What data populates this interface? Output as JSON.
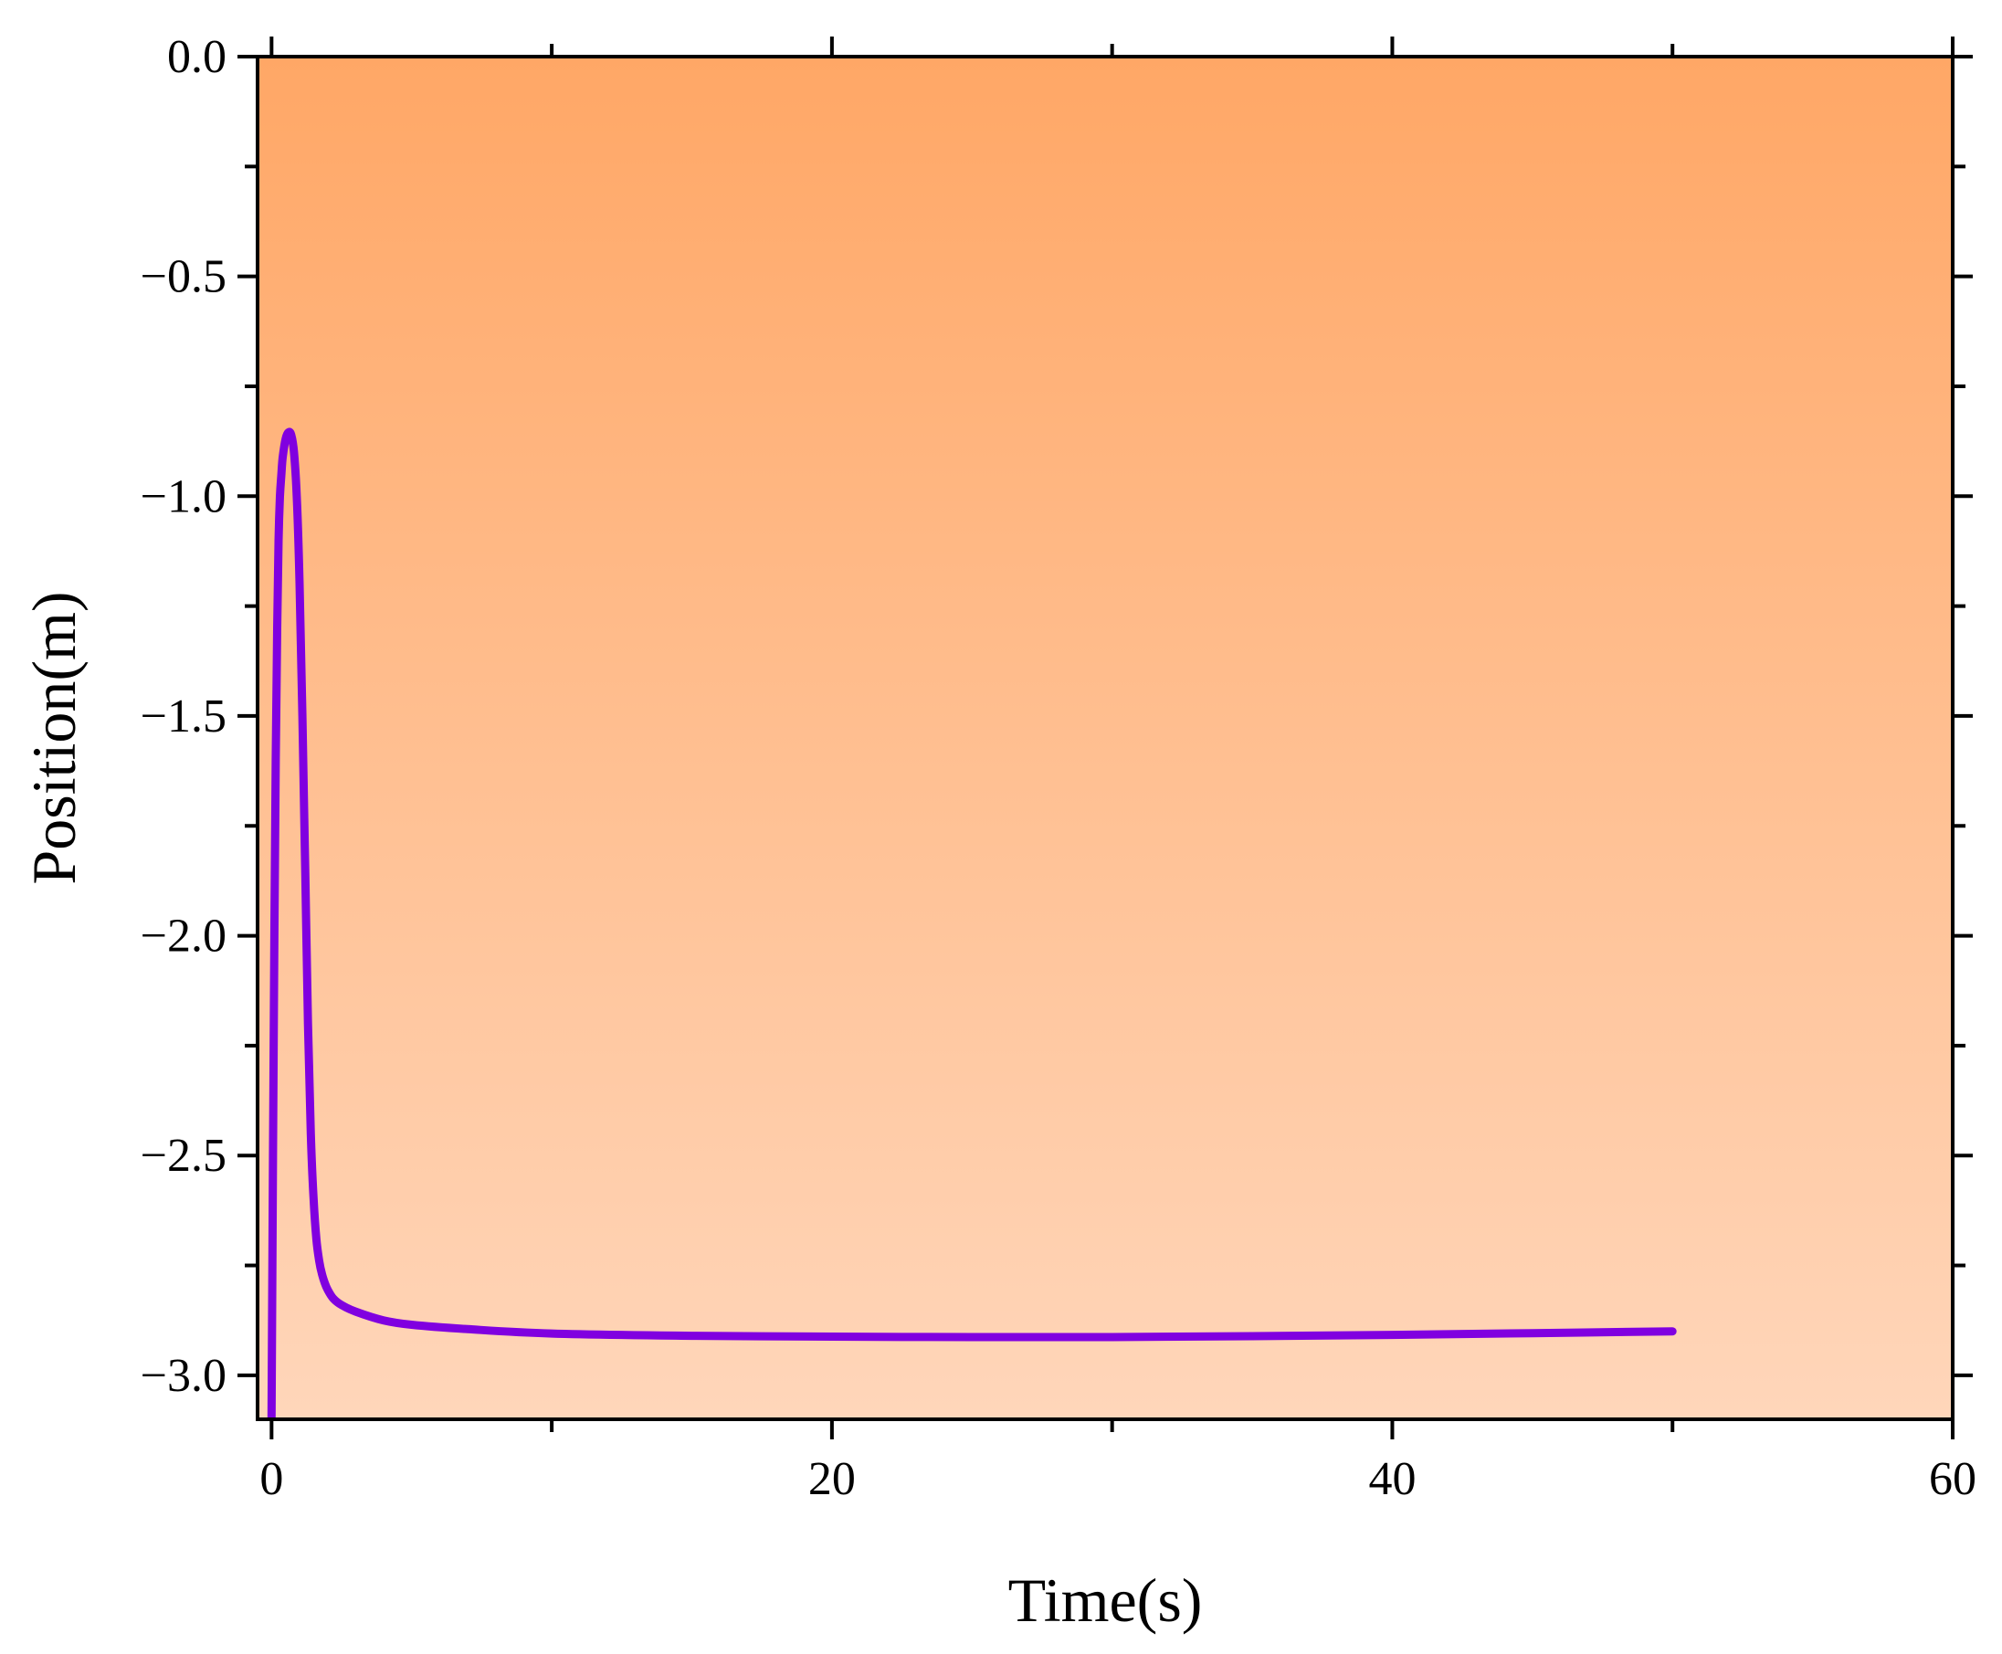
{
  "chart_data": {
    "type": "line",
    "title": "",
    "xlabel": "Time(s)",
    "ylabel": "Position(m)",
    "xlim": [
      -0.5,
      60
    ],
    "ylim": [
      -3.1,
      0.0
    ],
    "x_ticks": [
      {
        "value": 0,
        "label": "0"
      },
      {
        "value": 20,
        "label": "20"
      },
      {
        "value": 40,
        "label": "40"
      },
      {
        "value": 60,
        "label": "60"
      }
    ],
    "x_minor_ticks": [
      10,
      30,
      50
    ],
    "y_ticks": [
      {
        "value": 0.0,
        "label": "0.0"
      },
      {
        "value": -0.5,
        "label": "−0.5"
      },
      {
        "value": -1.0,
        "label": "−1.0"
      },
      {
        "value": -1.5,
        "label": "−1.5"
      },
      {
        "value": -2.0,
        "label": "−2.0"
      },
      {
        "value": -2.5,
        "label": "−2.5"
      },
      {
        "value": -3.0,
        "label": "−3.0"
      }
    ],
    "y_minor_ticks": [
      -0.25,
      -0.75,
      -1.25,
      -1.75,
      -2.25,
      -2.75
    ],
    "grid": false,
    "background_gradient": {
      "top": "#FFA766",
      "bottom": "#FFD6BA"
    },
    "series": [
      {
        "color": "#8000E0",
        "x": [
          0.0,
          0.05,
          0.1,
          0.15,
          0.2,
          0.25,
          0.3,
          0.35,
          0.4,
          0.5,
          0.6,
          0.7,
          0.8,
          0.9,
          1.0,
          1.1,
          1.2,
          1.3,
          1.4,
          1.5,
          1.6,
          1.7,
          1.8,
          1.9,
          2.0,
          2.2,
          2.5,
          3,
          4,
          5,
          7,
          10,
          15,
          20,
          25,
          30,
          35,
          40,
          45,
          50
        ],
        "y": [
          -3.1,
          -2.5,
          -2.0,
          -1.6,
          -1.3,
          -1.1,
          -1.0,
          -0.95,
          -0.91,
          -0.87,
          -0.855,
          -0.86,
          -0.9,
          -1.0,
          -1.2,
          -1.5,
          -1.85,
          -2.2,
          -2.45,
          -2.6,
          -2.69,
          -2.74,
          -2.77,
          -2.79,
          -2.805,
          -2.825,
          -2.84,
          -2.855,
          -2.875,
          -2.885,
          -2.895,
          -2.905,
          -2.91,
          -2.912,
          -2.913,
          -2.913,
          -2.911,
          -2.908,
          -2.904,
          -2.9
        ]
      }
    ]
  }
}
